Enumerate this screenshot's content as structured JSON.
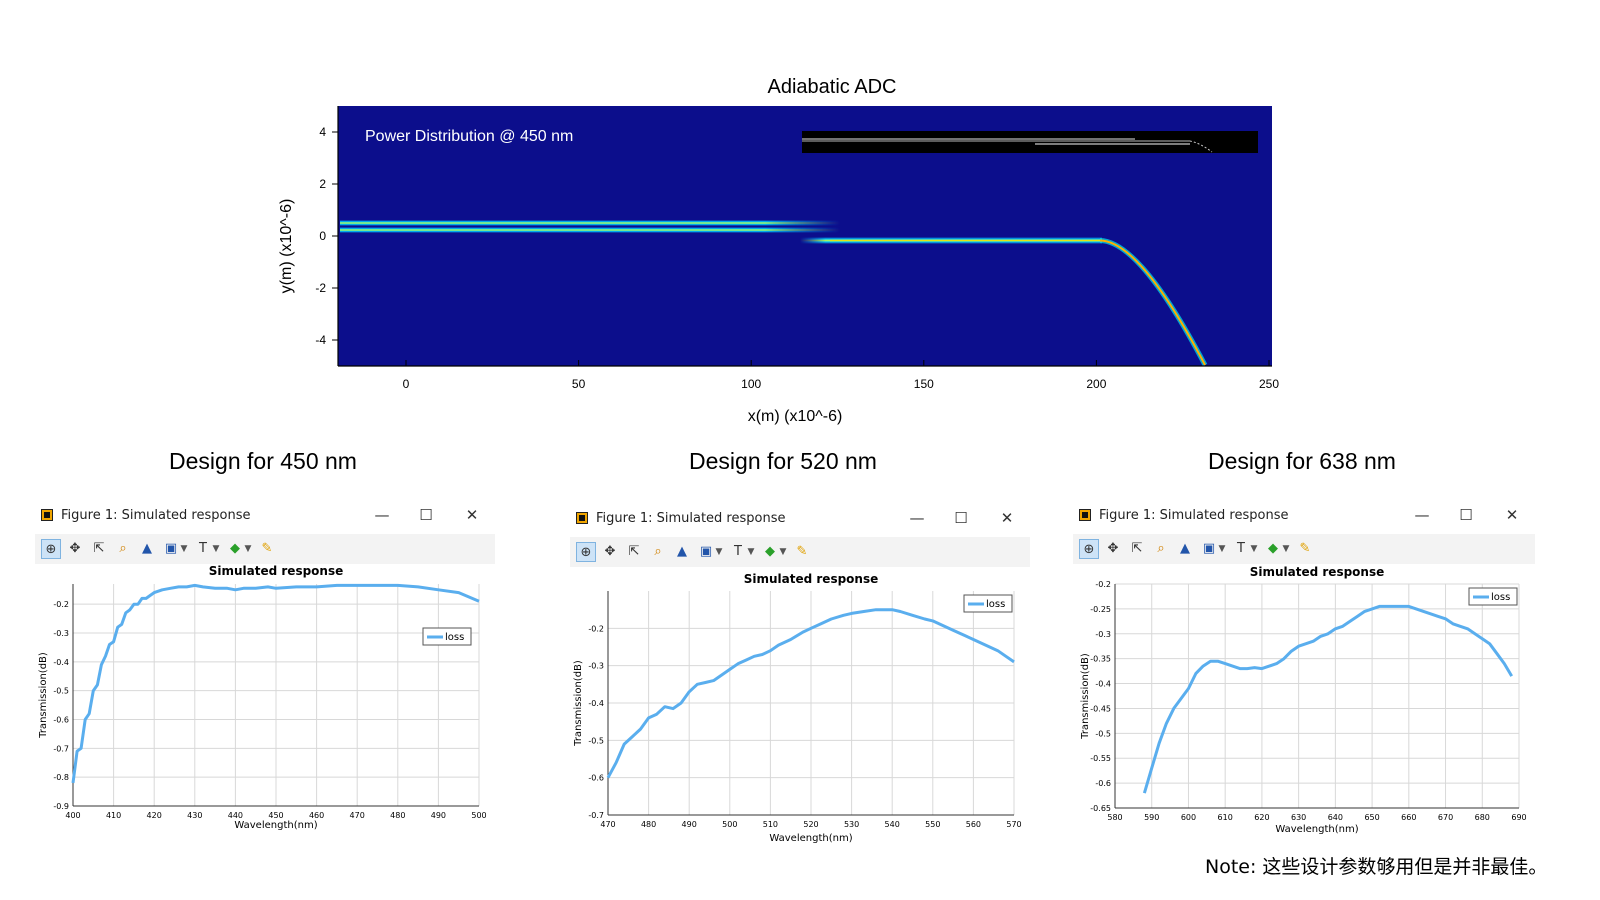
{
  "top_figure": {
    "title": "Adiabatic ADC",
    "annotation": "Power Distribution @ 450 nm",
    "xlabel": "x(m) (x10^-6)",
    "ylabel": "y(m) (x10^-6)",
    "xticks": [
      "0",
      "50",
      "100",
      "150",
      "200",
      "250"
    ],
    "yticks": [
      "4",
      "2",
      "0",
      "-2",
      "-4"
    ],
    "colors": {
      "background": "#0c0e8c",
      "core": "#ffd000",
      "edge": "#00ffe8"
    }
  },
  "design_titles": [
    "Design for 450 nm",
    "Design for 520 nm",
    "Design for 638 nm"
  ],
  "window": {
    "title": "Figure 1: Simulated response",
    "minimize": "—",
    "maximize": "☐",
    "close": "✕"
  },
  "toolbar_icons": [
    "zoom-icon",
    "pan-icon",
    "select-icon",
    "magnify-icon",
    "mountain-icon",
    "png-export-icon",
    "text-icon",
    "marker-icon",
    "pencil-icon"
  ],
  "chart_data": [
    {
      "type": "line",
      "title": "Simulated response",
      "xlabel": "Wavelength(nm)",
      "ylabel": "Transmission(dB)",
      "xlim": [
        400,
        500
      ],
      "ylim": [
        -0.9,
        -0.13
      ],
      "xticks": [
        "400",
        "410",
        "420",
        "430",
        "440",
        "450",
        "460",
        "470",
        "480",
        "490",
        "500"
      ],
      "yticks": [
        "-0.2",
        "-0.3",
        "-0.4",
        "-0.5",
        "-0.6",
        "-0.7",
        "-0.8",
        "-0.9"
      ],
      "legend": "right",
      "color": "#5aaeee",
      "series": [
        {
          "name": "loss",
          "x": [
            400,
            401,
            402,
            403,
            404,
            405,
            406,
            407,
            408,
            409,
            410,
            411,
            412,
            413,
            414,
            415,
            416,
            417,
            418,
            419,
            420,
            422,
            424,
            426,
            428,
            430,
            432,
            435,
            438,
            440,
            442,
            445,
            448,
            450,
            455,
            460,
            465,
            470,
            475,
            480,
            485,
            490,
            495,
            500
          ],
          "y": [
            -0.82,
            -0.71,
            -0.7,
            -0.6,
            -0.58,
            -0.5,
            -0.48,
            -0.41,
            -0.38,
            -0.34,
            -0.33,
            -0.28,
            -0.27,
            -0.23,
            -0.22,
            -0.2,
            -0.2,
            -0.18,
            -0.18,
            -0.17,
            -0.16,
            -0.15,
            -0.145,
            -0.14,
            -0.14,
            -0.135,
            -0.14,
            -0.145,
            -0.145,
            -0.15,
            -0.145,
            -0.145,
            -0.14,
            -0.145,
            -0.14,
            -0.14,
            -0.135,
            -0.135,
            -0.135,
            -0.135,
            -0.14,
            -0.15,
            -0.16,
            -0.19
          ]
        }
      ]
    },
    {
      "type": "line",
      "title": "Simulated response",
      "xlabel": "Wavelength(nm)",
      "ylabel": "Transmission(dB)",
      "xlim": [
        470,
        570
      ],
      "ylim": [
        -0.7,
        -0.1
      ],
      "xticks": [
        "470",
        "480",
        "490",
        "500",
        "510",
        "520",
        "530",
        "540",
        "550",
        "560",
        "570"
      ],
      "yticks": [
        "-0.2",
        "-0.3",
        "-0.4",
        "-0.5",
        "-0.6",
        "-0.7"
      ],
      "legend": "top-right",
      "color": "#5aaeee",
      "series": [
        {
          "name": "loss",
          "x": [
            470,
            472,
            474,
            476,
            478,
            480,
            482,
            484,
            486,
            488,
            490,
            492,
            494,
            496,
            498,
            500,
            502,
            504,
            506,
            508,
            510,
            512,
            515,
            518,
            520,
            522,
            525,
            528,
            530,
            533,
            536,
            540,
            542,
            545,
            548,
            550,
            552,
            555,
            558,
            560,
            563,
            566,
            568,
            570
          ],
          "y": [
            -0.6,
            -0.56,
            -0.51,
            -0.49,
            -0.47,
            -0.44,
            -0.43,
            -0.41,
            -0.415,
            -0.4,
            -0.37,
            -0.35,
            -0.345,
            -0.34,
            -0.325,
            -0.31,
            -0.295,
            -0.285,
            -0.275,
            -0.27,
            -0.26,
            -0.245,
            -0.23,
            -0.21,
            -0.2,
            -0.19,
            -0.175,
            -0.165,
            -0.16,
            -0.155,
            -0.15,
            -0.15,
            -0.155,
            -0.165,
            -0.175,
            -0.18,
            -0.19,
            -0.205,
            -0.22,
            -0.23,
            -0.245,
            -0.26,
            -0.275,
            -0.29
          ]
        }
      ]
    },
    {
      "type": "line",
      "title": "Simulated response",
      "xlabel": "Wavelength(nm)",
      "ylabel": "Transmission(dB)",
      "xlim": [
        580,
        690
      ],
      "ylim": [
        -0.65,
        -0.2
      ],
      "xticks": [
        "580",
        "590",
        "600",
        "610",
        "620",
        "630",
        "640",
        "650",
        "660",
        "670",
        "680",
        "690"
      ],
      "yticks": [
        "-0.2",
        "-0.25",
        "-0.3",
        "-0.35",
        "-0.4",
        "-0.45",
        "-0.5",
        "-0.55",
        "-0.6",
        "-0.65"
      ],
      "legend": "top-right",
      "color": "#5aaeee",
      "series": [
        {
          "name": "loss",
          "x": [
            588,
            590,
            592,
            594,
            596,
            598,
            600,
            602,
            604,
            606,
            608,
            610,
            612,
            614,
            616,
            618,
            620,
            622,
            624,
            626,
            628,
            630,
            632,
            634,
            636,
            638,
            640,
            642,
            644,
            646,
            648,
            650,
            652,
            654,
            656,
            658,
            660,
            662,
            664,
            666,
            668,
            670,
            672,
            674,
            676,
            678,
            680,
            682,
            684,
            686,
            688
          ],
          "y": [
            -0.62,
            -0.57,
            -0.52,
            -0.48,
            -0.45,
            -0.43,
            -0.41,
            -0.38,
            -0.365,
            -0.355,
            -0.355,
            -0.36,
            -0.365,
            -0.37,
            -0.37,
            -0.368,
            -0.37,
            -0.365,
            -0.36,
            -0.35,
            -0.335,
            -0.325,
            -0.32,
            -0.315,
            -0.305,
            -0.3,
            -0.29,
            -0.285,
            -0.275,
            -0.265,
            -0.255,
            -0.25,
            -0.245,
            -0.245,
            -0.245,
            -0.245,
            -0.245,
            -0.25,
            -0.255,
            -0.26,
            -0.265,
            -0.27,
            -0.28,
            -0.285,
            -0.29,
            -0.3,
            -0.31,
            -0.32,
            -0.34,
            -0.36,
            -0.385
          ]
        }
      ]
    }
  ],
  "note": "Note: 这些设计参数够用但是并非最佳。"
}
